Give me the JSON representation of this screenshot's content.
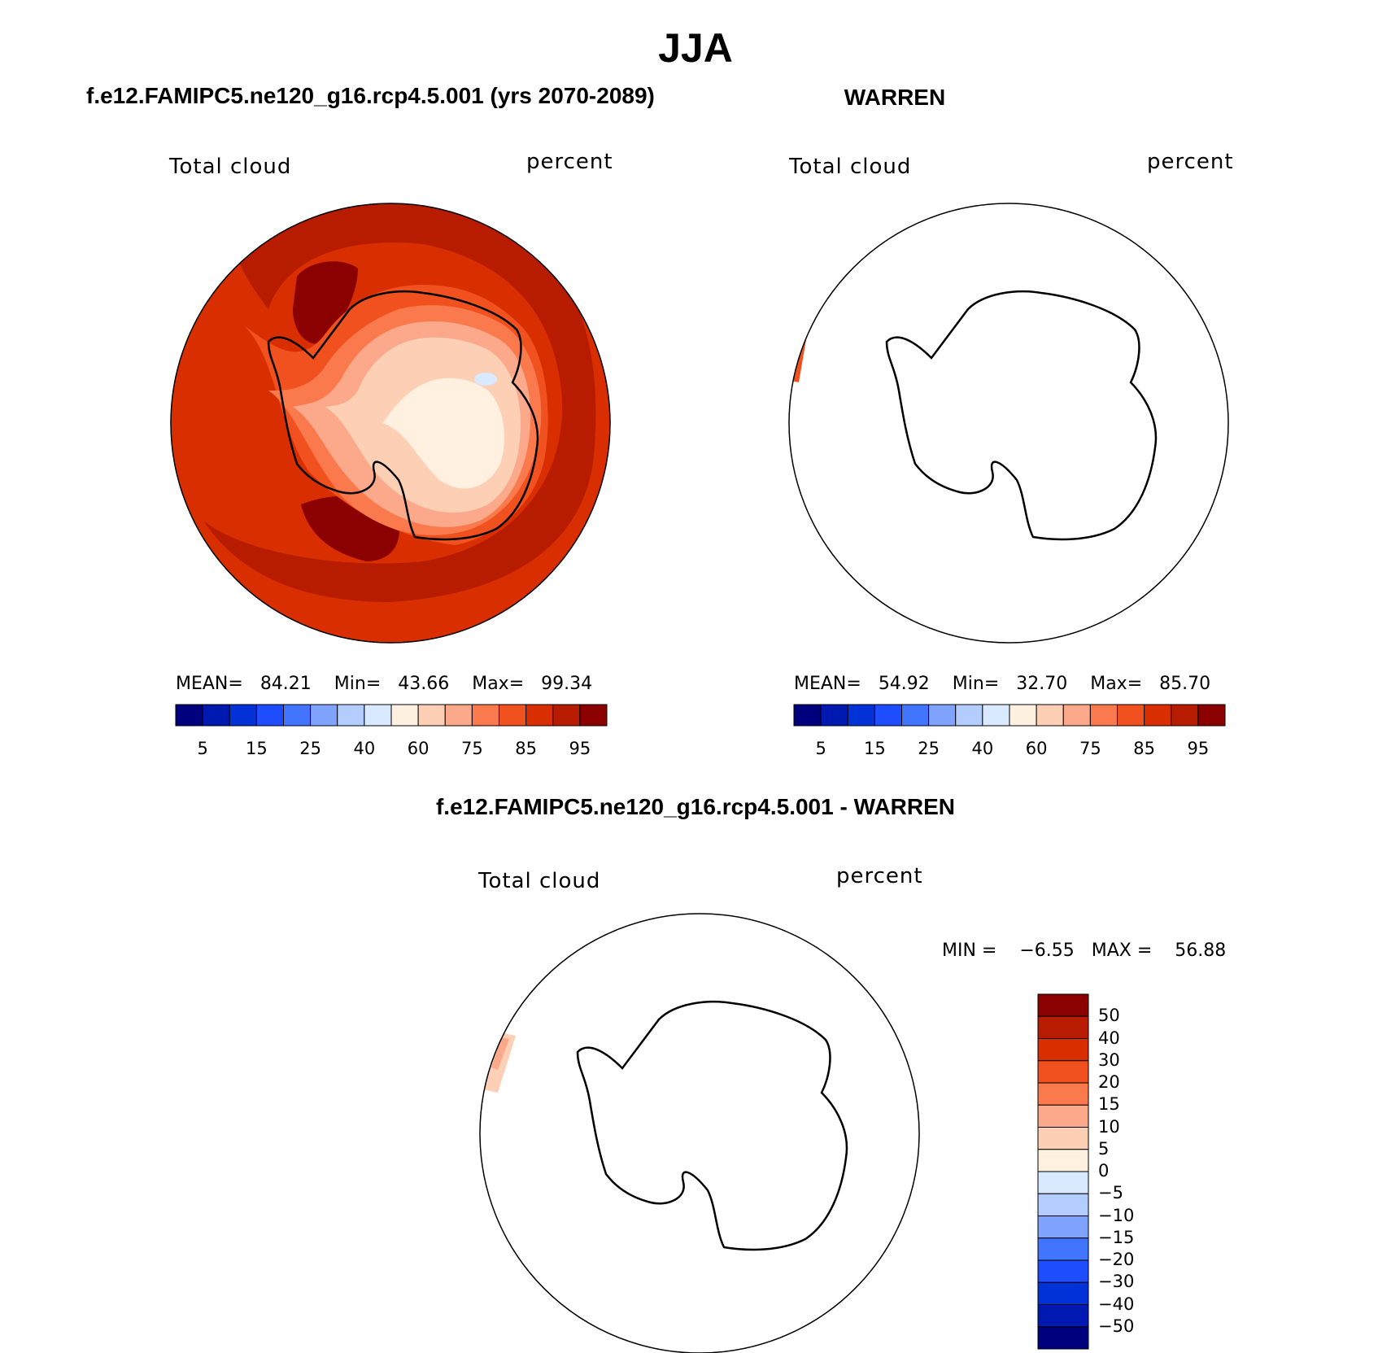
{
  "title": "JJA",
  "colors": {
    "full_scale": [
      "#00007f",
      "#0019b0",
      "#0032d8",
      "#1e4cff",
      "#4275ff",
      "#7fa3ff",
      "#b4cdff",
      "#d9e9ff",
      "#fff0e0",
      "#fdd0b6",
      "#fba98a",
      "#fa7a4e",
      "#f0511e",
      "#d92e00",
      "#b71c00",
      "#8b0000"
    ],
    "diff_scale": [
      "#00007f",
      "#0019b0",
      "#0032d8",
      "#1e4cff",
      "#4275ff",
      "#7fa3ff",
      "#b4cdff",
      "#d9e9ff",
      "#fff0e0",
      "#fdd0b6",
      "#fba98a",
      "#fa7a4e",
      "#f0511e",
      "#d92e00",
      "#b71c00",
      "#8b0000"
    ]
  },
  "panels": [
    {
      "title": "f.e12.FAMIPC5.ne120_g16.rcp4.5.001 (yrs 2070-2089)",
      "variable": "Total cloud",
      "units": "percent",
      "mean_label": "MEAN=",
      "mean": "84.21",
      "min_label": "Min=",
      "min": "43.66",
      "max_label": "Max=",
      "max": "99.34",
      "ticks": [
        "5",
        "15",
        "25",
        "40",
        "60",
        "75",
        "85",
        "95"
      ]
    },
    {
      "title": "WARREN",
      "variable": "Total cloud",
      "units": "percent",
      "mean_label": "MEAN=",
      "mean": "54.92",
      "min_label": "Min=",
      "min": "32.70",
      "max_label": "Max=",
      "max": "85.70",
      "ticks": [
        "5",
        "15",
        "25",
        "40",
        "60",
        "75",
        "85",
        "95"
      ]
    }
  ],
  "diff_panel": {
    "title": "f.e12.FAMIPC5.ne120_g16.rcp4.5.001 - WARREN",
    "variable": "Total cloud",
    "units": "percent",
    "min_label": "MIN =",
    "min": "−6.55",
    "max_label": "MAX =",
    "max": "56.88",
    "ticks": [
      "50",
      "40",
      "30",
      "20",
      "15",
      "10",
      "5",
      "0",
      "−5",
      "−10",
      "−15",
      "−20",
      "−30",
      "−40",
      "−50"
    ]
  }
}
